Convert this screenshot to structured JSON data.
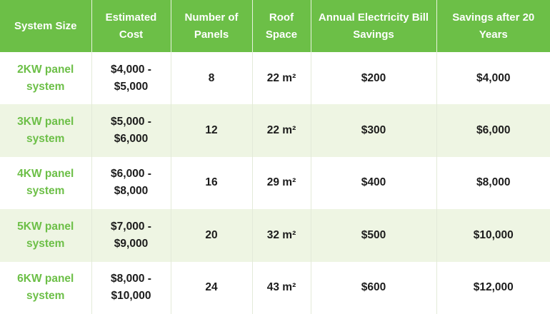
{
  "table": {
    "header": [
      "System Size",
      "Estimated Cost",
      "Number of Panels",
      "Roof Space",
      "Annual Electricity Bill Savings",
      "Savings after 20 Years"
    ],
    "rows": [
      [
        "2KW panel system",
        "$4,000 - $5,000",
        "8",
        "22 m²",
        "$200",
        "$4,000"
      ],
      [
        "3KW panel system",
        "$5,000 - $6,000",
        "12",
        "22 m²",
        "$300",
        "$6,000"
      ],
      [
        "4KW panel system",
        "$6,000 - $8,000",
        "16",
        "29 m²",
        "$400",
        "$8,000"
      ],
      [
        "5KW panel system",
        "$7,000 - $9,000",
        "20",
        "32 m²",
        "$500",
        "$10,000"
      ],
      [
        "6KW panel system",
        "$8,000 - $10,000",
        "24",
        "43 m²",
        "$600",
        "$12,000"
      ]
    ]
  }
}
